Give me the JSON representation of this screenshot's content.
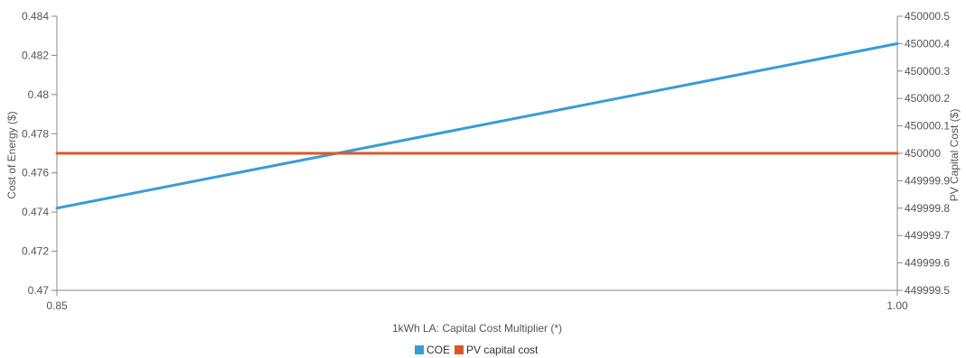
{
  "chart_data": {
    "type": "line",
    "xlabel": "1kWh LA: Capital Cost Multiplier (*)",
    "x_ticks": [
      "0.85",
      "1.00"
    ],
    "xlim": [
      0.85,
      1.0
    ],
    "y_left": {
      "label": "Cost of Energy ($)",
      "ylim": [
        0.47,
        0.484
      ],
      "ticks": [
        "0.47",
        "0.472",
        "0.474",
        "0.476",
        "0.478",
        "0.48",
        "0.482",
        "0.484"
      ]
    },
    "y_right": {
      "label": "PV Capital Cost ($)",
      "ylim": [
        449999.5,
        450000.5
      ],
      "ticks": [
        "449999.5",
        "449999.6",
        "449999.7",
        "449999.8",
        "449999.9",
        "450000",
        "450000.1",
        "450000.2",
        "450000.3",
        "450000.4",
        "450000.5"
      ]
    },
    "series": [
      {
        "name": "COE",
        "axis": "left",
        "color": "#3a9bd5",
        "x": [
          0.85,
          1.0
        ],
        "y": [
          0.4742,
          0.4826
        ]
      },
      {
        "name": "PV capital cost",
        "axis": "right",
        "color": "#d9582b",
        "x": [
          0.85,
          1.0
        ],
        "y": [
          450000,
          450000
        ]
      }
    ],
    "legend_position": "bottom-center",
    "grid": false
  }
}
